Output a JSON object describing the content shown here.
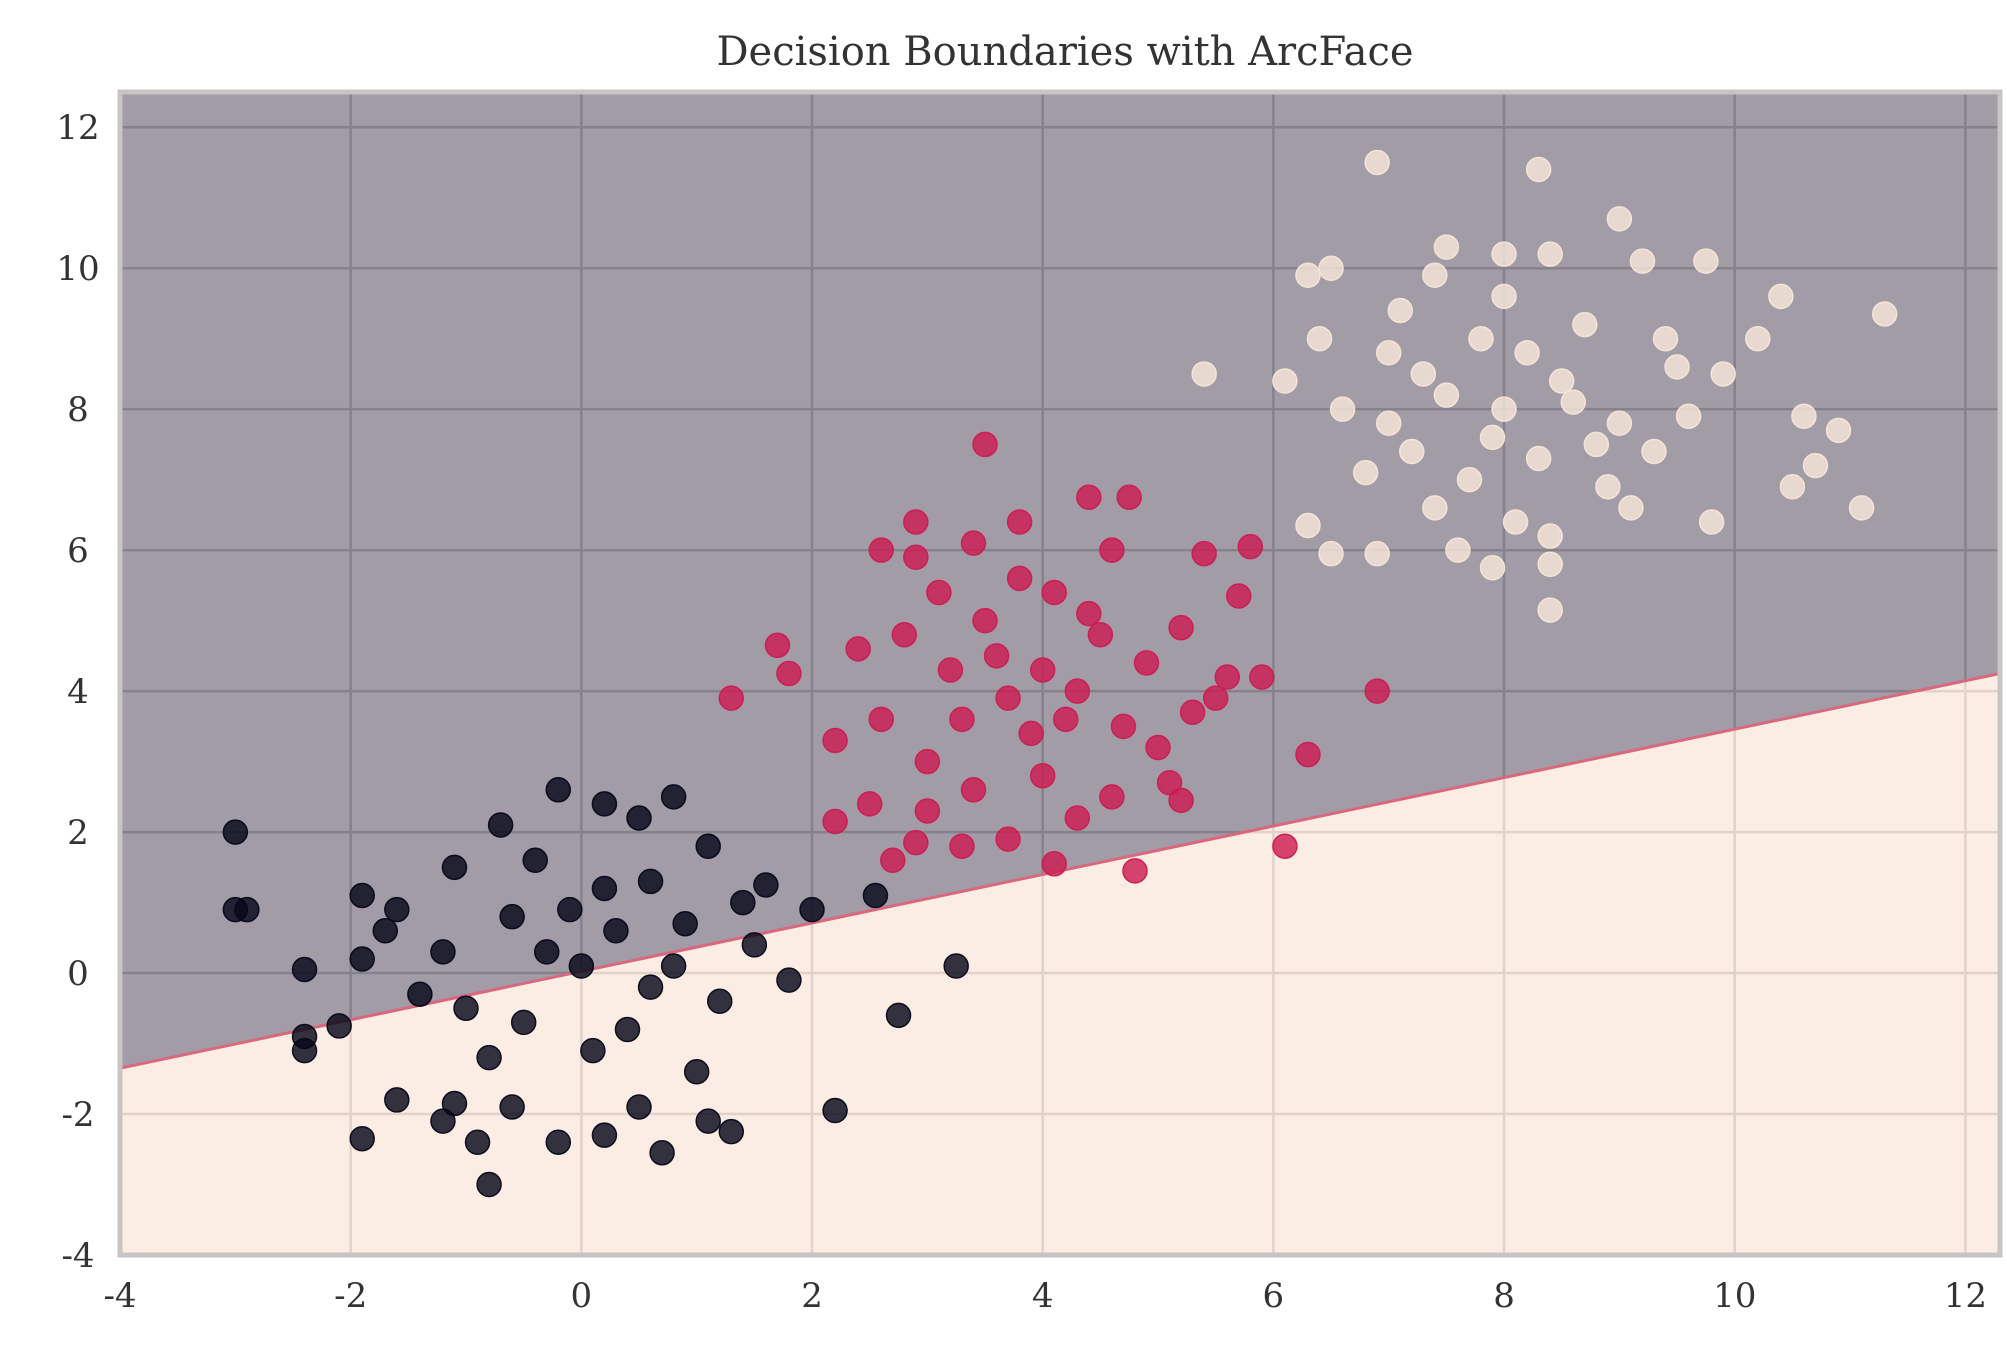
{
  "chart_data": {
    "type": "scatter",
    "title": "Decision Boundaries with ArcFace",
    "xlabel": "",
    "ylabel": "",
    "xlim": [
      -4,
      12.3
    ],
    "ylim": [
      -4,
      12.5
    ],
    "grid": true,
    "legend": "none",
    "x_ticks": [
      -4,
      -2,
      0,
      2,
      4,
      6,
      8,
      10,
      12
    ],
    "y_ticks": [
      -4,
      -2,
      0,
      2,
      4,
      6,
      8,
      10,
      12
    ],
    "x_tick_labels": [
      "-4",
      "-2",
      "0",
      "2",
      "4",
      "6",
      "8",
      "10",
      "12"
    ],
    "y_tick_labels": [
      "-4",
      "-2",
      "0",
      "2",
      "4",
      "6",
      "8",
      "10",
      "12"
    ],
    "regions": [
      {
        "color": "#a19ca6",
        "description_of_boundary": "above line"
      },
      {
        "color": "#fbede3",
        "description_of_boundary": "below line"
      }
    ],
    "boundary_line": {
      "x": [
        -4,
        12.3
      ],
      "y": [
        -1.35,
        4.25
      ]
    },
    "series": [
      {
        "color": "#07071a",
        "cluster_center": [
          0,
          0
        ],
        "spread": 1.0,
        "points": [
          [
            -3.0,
            2.0
          ],
          [
            -3.0,
            0.9
          ],
          [
            -2.9,
            0.9
          ],
          [
            -2.4,
            0.05
          ],
          [
            -2.4,
            -0.9
          ],
          [
            -2.4,
            -1.1
          ],
          [
            -2.1,
            -0.75
          ],
          [
            -1.9,
            1.1
          ],
          [
            -1.9,
            -2.35
          ],
          [
            -1.7,
            0.6
          ],
          [
            -1.6,
            -1.8
          ],
          [
            -1.9,
            0.2
          ],
          [
            -1.2,
            -2.1
          ],
          [
            -1.1,
            -1.85
          ],
          [
            -0.9,
            -2.4
          ],
          [
            -0.8,
            -3.0
          ],
          [
            -0.6,
            -1.9
          ],
          [
            -0.2,
            -2.4
          ],
          [
            0.2,
            -2.3
          ],
          [
            0.5,
            -1.9
          ],
          [
            0.7,
            -2.55
          ],
          [
            1.1,
            -2.1
          ],
          [
            1.3,
            -2.25
          ],
          [
            2.2,
            -1.95
          ],
          [
            2.75,
            -0.6
          ],
          [
            3.25,
            0.1
          ],
          [
            2.55,
            1.1
          ],
          [
            2.0,
            0.9
          ],
          [
            1.6,
            1.25
          ],
          [
            1.1,
            1.8
          ],
          [
            0.8,
            2.5
          ],
          [
            0.5,
            2.2
          ],
          [
            0.2,
            2.4
          ],
          [
            -0.2,
            2.6
          ],
          [
            -0.7,
            2.1
          ],
          [
            -1.1,
            1.5
          ],
          [
            -1.2,
            0.3
          ],
          [
            -1.0,
            -0.5
          ],
          [
            -0.6,
            0.8
          ],
          [
            -0.3,
            0.3
          ],
          [
            0.0,
            0.1
          ],
          [
            0.3,
            0.6
          ],
          [
            0.6,
            -0.2
          ],
          [
            0.9,
            0.7
          ],
          [
            1.2,
            -0.4
          ],
          [
            1.5,
            0.4
          ],
          [
            1.8,
            -0.1
          ],
          [
            -0.5,
            -0.7
          ],
          [
            0.1,
            -1.1
          ],
          [
            0.4,
            -0.8
          ],
          [
            -0.8,
            -1.2
          ],
          [
            -1.4,
            -0.3
          ],
          [
            1.0,
            -1.4
          ],
          [
            0.2,
            1.2
          ],
          [
            -0.1,
            0.9
          ],
          [
            0.6,
            1.3
          ],
          [
            -0.4,
            1.6
          ],
          [
            0.8,
            0.1
          ],
          [
            -1.6,
            0.9
          ],
          [
            1.4,
            1.0
          ]
        ]
      },
      {
        "color": "#cc1c52",
        "cluster_center": [
          4,
          4
        ],
        "spread": 1.0,
        "points": [
          [
            3.5,
            7.5
          ],
          [
            2.9,
            6.4
          ],
          [
            2.6,
            6.0
          ],
          [
            1.3,
            3.9
          ],
          [
            1.7,
            4.65
          ],
          [
            1.8,
            4.25
          ],
          [
            2.2,
            2.15
          ],
          [
            2.7,
            1.6
          ],
          [
            2.9,
            1.85
          ],
          [
            3.3,
            1.8
          ],
          [
            3.7,
            1.9
          ],
          [
            4.1,
            1.55
          ],
          [
            4.8,
            1.45
          ],
          [
            5.2,
            2.45
          ],
          [
            6.1,
            1.8
          ],
          [
            6.3,
            3.1
          ],
          [
            6.9,
            4.0
          ],
          [
            5.9,
            4.2
          ],
          [
            5.5,
            3.9
          ],
          [
            4.4,
            6.75
          ],
          [
            4.75,
            6.75
          ],
          [
            3.8,
            6.4
          ],
          [
            4.6,
            6.0
          ],
          [
            5.4,
            5.95
          ],
          [
            5.8,
            6.05
          ],
          [
            5.7,
            5.35
          ],
          [
            4.4,
            5.1
          ],
          [
            3.1,
            5.4
          ],
          [
            2.4,
            4.6
          ],
          [
            2.6,
            3.6
          ],
          [
            3.0,
            3.0
          ],
          [
            3.4,
            2.6
          ],
          [
            4.0,
            2.8
          ],
          [
            4.6,
            2.5
          ],
          [
            5.0,
            3.2
          ],
          [
            5.3,
            3.7
          ],
          [
            4.9,
            4.4
          ],
          [
            4.3,
            4.0
          ],
          [
            3.7,
            3.9
          ],
          [
            3.2,
            4.3
          ],
          [
            2.8,
            4.8
          ],
          [
            3.5,
            5.0
          ],
          [
            4.1,
            5.4
          ],
          [
            4.5,
            4.8
          ],
          [
            3.9,
            3.4
          ],
          [
            3.3,
            3.6
          ],
          [
            2.5,
            2.4
          ],
          [
            5.2,
            4.9
          ],
          [
            3.6,
            4.5
          ],
          [
            4.2,
            3.6
          ],
          [
            2.9,
            5.9
          ],
          [
            3.8,
            5.6
          ],
          [
            4.7,
            3.5
          ],
          [
            5.6,
            4.2
          ],
          [
            2.2,
            3.3
          ],
          [
            3.0,
            2.3
          ],
          [
            4.3,
            2.2
          ],
          [
            5.1,
            2.7
          ],
          [
            3.4,
            6.1
          ],
          [
            4.0,
            4.3
          ]
        ]
      },
      {
        "color": "#f6e6d8",
        "cluster_center": [
          8,
          8
        ],
        "spread": 1.0,
        "points": [
          [
            6.9,
            11.5
          ],
          [
            8.3,
            11.4
          ],
          [
            9.0,
            10.7
          ],
          [
            9.75,
            10.1
          ],
          [
            10.4,
            9.6
          ],
          [
            11.3,
            9.35
          ],
          [
            11.1,
            6.6
          ],
          [
            10.5,
            6.9
          ],
          [
            9.8,
            6.4
          ],
          [
            8.4,
            5.15
          ],
          [
            8.4,
            5.8
          ],
          [
            7.9,
            5.75
          ],
          [
            6.9,
            5.95
          ],
          [
            6.5,
            5.95
          ],
          [
            6.3,
            6.35
          ],
          [
            5.4,
            8.5
          ],
          [
            6.3,
            9.9
          ],
          [
            6.5,
            10.0
          ],
          [
            7.5,
            10.3
          ],
          [
            7.4,
            9.9
          ],
          [
            8.0,
            10.2
          ],
          [
            8.4,
            10.2
          ],
          [
            9.2,
            10.1
          ],
          [
            10.2,
            9.0
          ],
          [
            10.9,
            7.7
          ],
          [
            10.7,
            7.2
          ],
          [
            10.6,
            7.9
          ],
          [
            7.0,
            8.8
          ],
          [
            7.5,
            8.2
          ],
          [
            8.0,
            8.0
          ],
          [
            8.5,
            8.4
          ],
          [
            9.0,
            7.8
          ],
          [
            9.5,
            8.6
          ],
          [
            8.7,
            9.2
          ],
          [
            7.8,
            9.0
          ],
          [
            7.2,
            7.4
          ],
          [
            7.7,
            7.0
          ],
          [
            8.3,
            7.3
          ],
          [
            8.9,
            6.9
          ],
          [
            9.3,
            7.4
          ],
          [
            6.6,
            8.0
          ],
          [
            7.1,
            9.4
          ],
          [
            8.2,
            8.8
          ],
          [
            8.8,
            7.5
          ],
          [
            9.6,
            7.9
          ],
          [
            6.8,
            7.1
          ],
          [
            7.4,
            6.6
          ],
          [
            8.1,
            6.4
          ],
          [
            9.1,
            6.6
          ],
          [
            6.1,
            8.4
          ],
          [
            7.9,
            7.6
          ],
          [
            8.6,
            8.1
          ],
          [
            9.4,
            9.0
          ],
          [
            7.3,
            8.5
          ],
          [
            8.0,
            9.6
          ],
          [
            6.4,
            9.0
          ],
          [
            7.6,
            6.0
          ],
          [
            9.9,
            8.5
          ],
          [
            8.4,
            6.2
          ],
          [
            7.0,
            7.8
          ]
        ]
      }
    ]
  }
}
